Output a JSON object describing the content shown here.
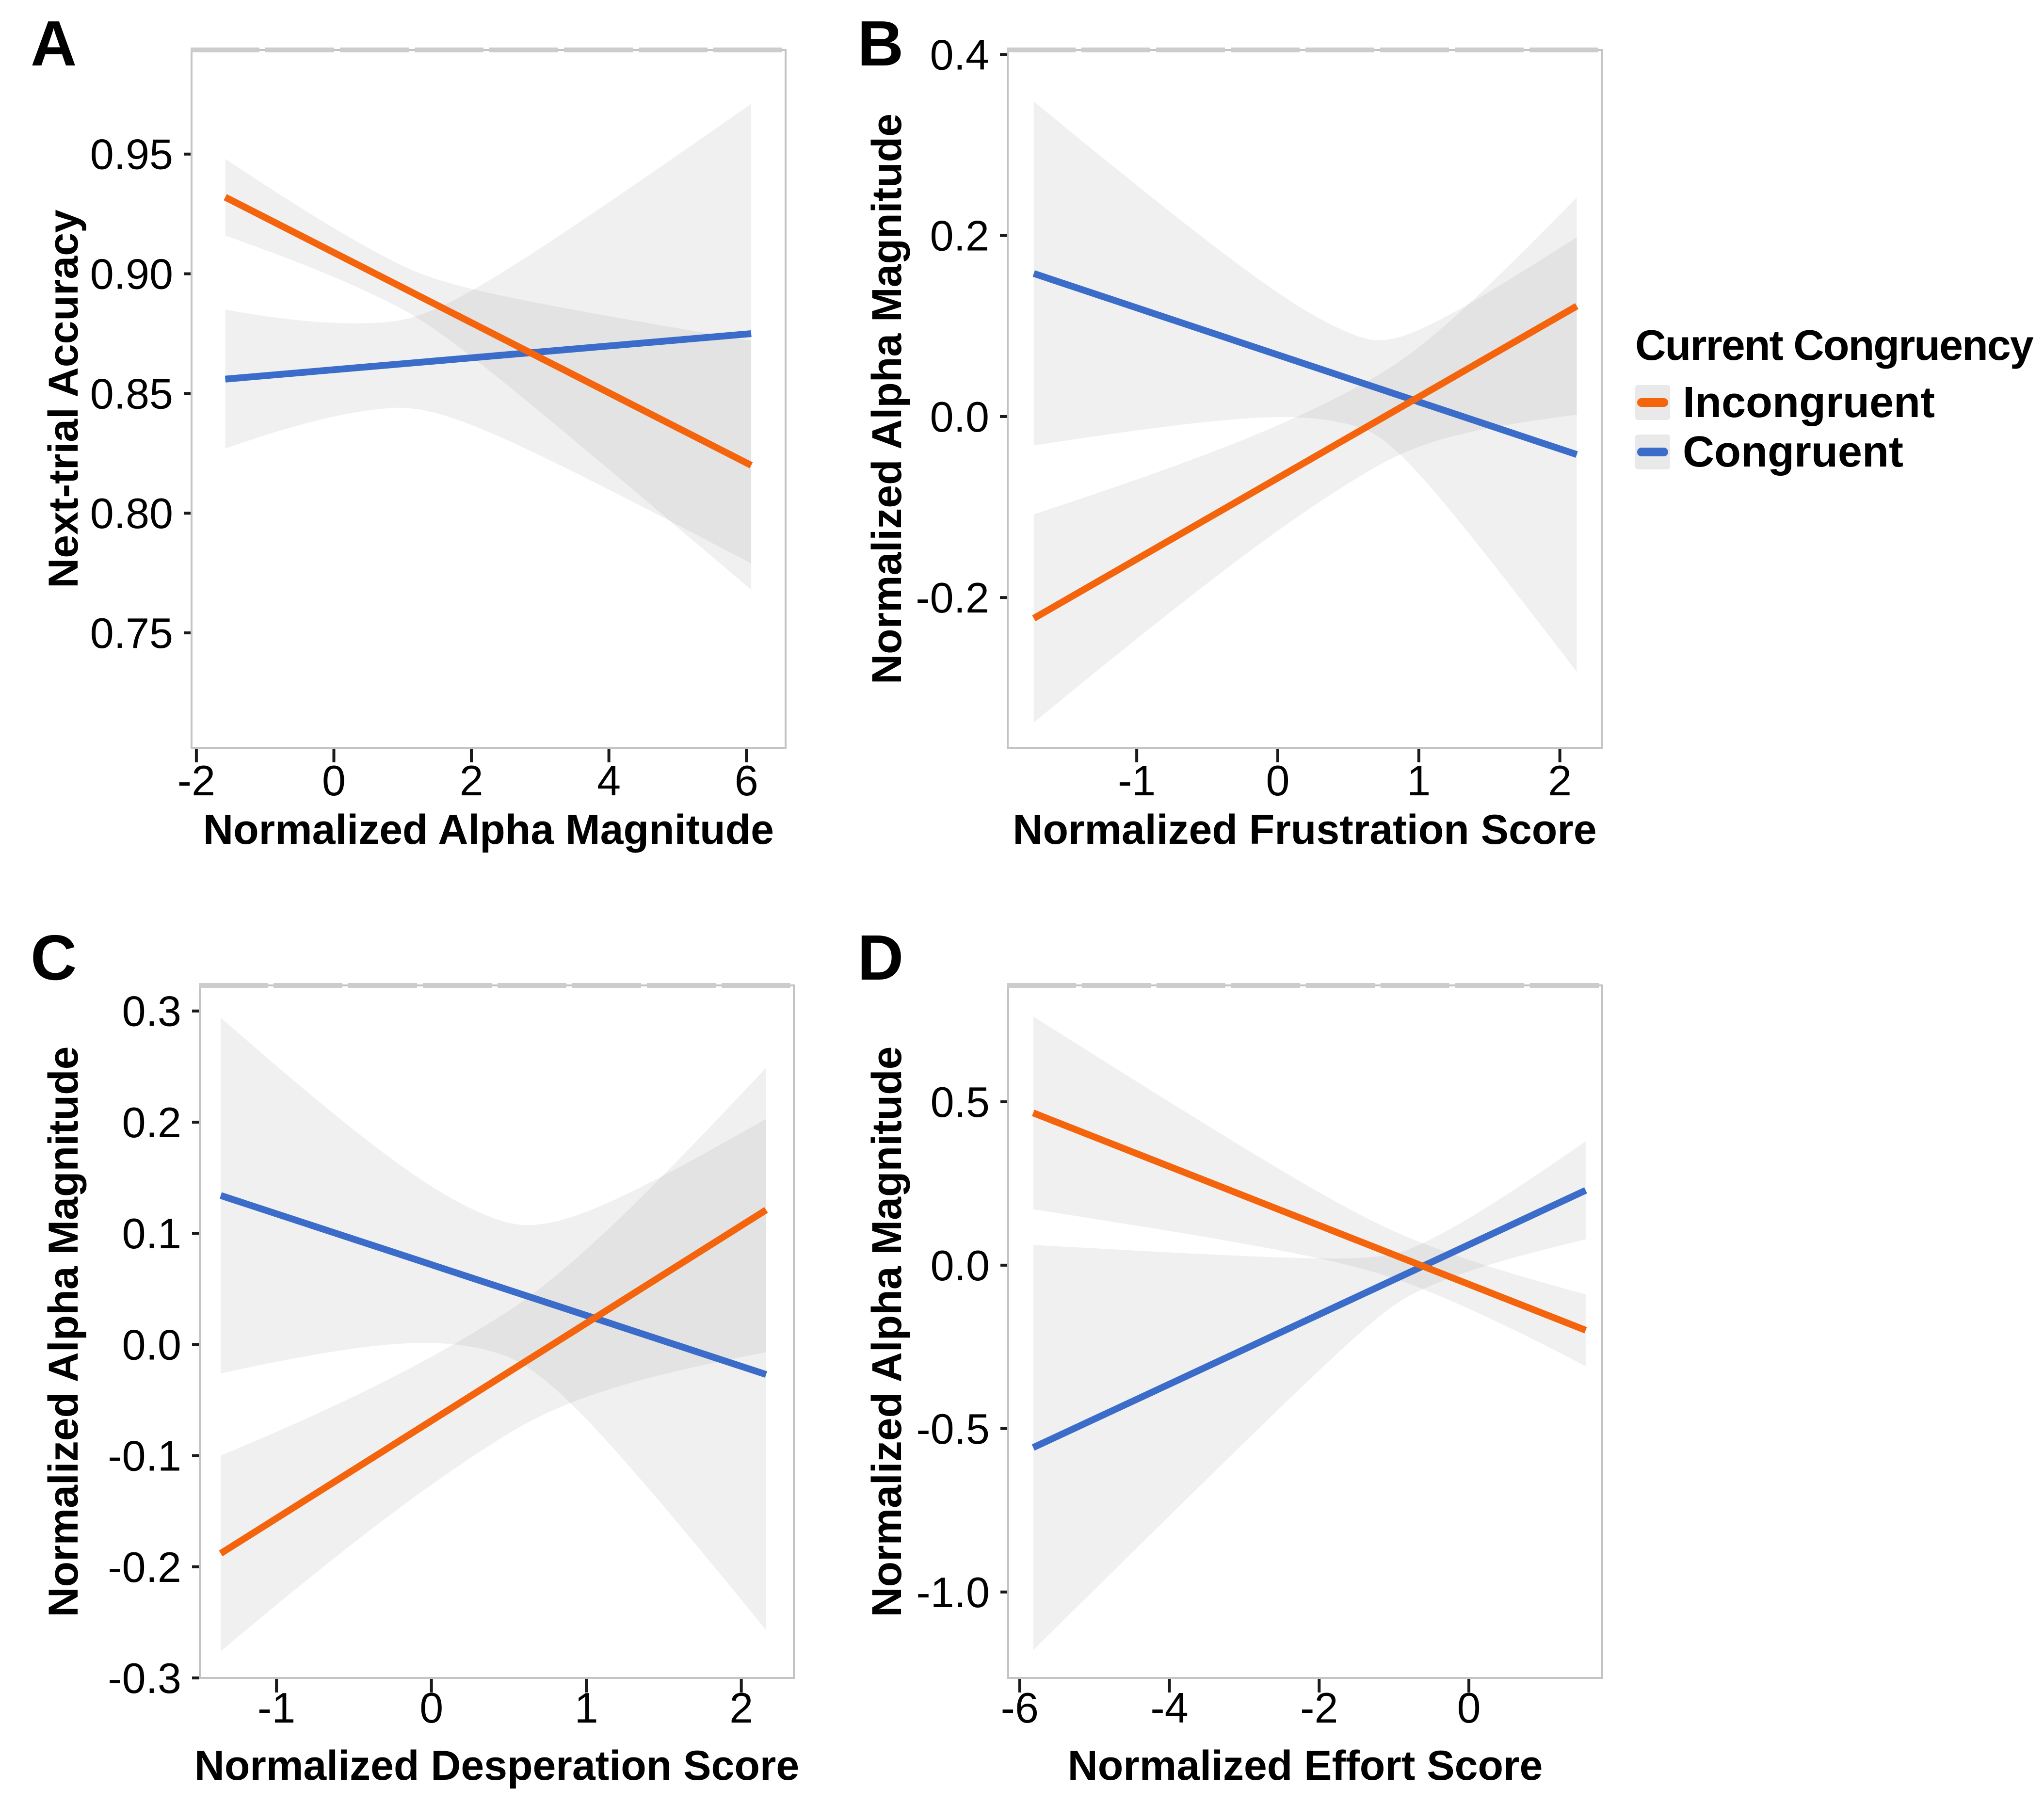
{
  "colors": {
    "incongruent": "#F4640D",
    "congruent": "#3B6CC9",
    "ci_fill": "#8A8A8A",
    "ci_opacity": 0.125,
    "axis_border": "#C4C4C4",
    "top_dash": "#CCCCCC",
    "tick": "#1A1A1A",
    "background": "#FFFFFF",
    "legend_key_bg": "#E9E9E9"
  },
  "legend": {
    "title": "Current Congruency",
    "items": [
      {
        "label": "Incongruent",
        "color_key": "incongruent"
      },
      {
        "label": "Congruent",
        "color_key": "congruent"
      }
    ]
  },
  "chart_data": [
    {
      "id": "A",
      "type": "line",
      "panel_label": "A",
      "xlabel": "Normalized Alpha Magnitude",
      "ylabel": "Next-trial Accuracy",
      "xlim": [
        -2.07,
        6.57
      ],
      "ylim": [
        0.702,
        0.9935
      ],
      "xticks": [
        {
          "value": -2,
          "label": "-2"
        },
        {
          "value": 0,
          "label": "0"
        },
        {
          "value": 2,
          "label": "2"
        },
        {
          "value": 4,
          "label": "4"
        },
        {
          "value": 6,
          "label": "6"
        }
      ],
      "yticks": [
        {
          "value": 0.75,
          "label": "0.75"
        },
        {
          "value": 0.8,
          "label": "0.80"
        },
        {
          "value": 0.85,
          "label": "0.85"
        },
        {
          "value": 0.9,
          "label": "0.90"
        },
        {
          "value": 0.95,
          "label": "0.95"
        }
      ],
      "series": [
        {
          "name": "Congruent",
          "color_key": "congruent",
          "x": [
            -1.58,
            6.07
          ],
          "y": [
            0.856,
            0.875
          ],
          "ci": {
            "x_mid": 0.8,
            "w_left": 0.029,
            "w_mid": 0.018,
            "w_right": 0.096
          }
        },
        {
          "name": "Incongruent",
          "color_key": "incongruent",
          "x": [
            -1.58,
            6.07
          ],
          "y": [
            0.932,
            0.82
          ],
          "ci": {
            "x_mid": 0.9,
            "w_left": 0.016,
            "w_mid": 0.009,
            "w_right": 0.052
          }
        }
      ]
    },
    {
      "id": "B",
      "type": "line",
      "panel_label": "B",
      "xlabel": "Normalized Frustration Score",
      "ylabel": "Normalized Alpha Magnitude",
      "xlim": [
        -1.915,
        2.297
      ],
      "ylim": [
        -0.366,
        0.405
      ],
      "xticks": [
        {
          "value": -1,
          "label": "-1"
        },
        {
          "value": 0,
          "label": "0"
        },
        {
          "value": 1,
          "label": "1"
        },
        {
          "value": 2,
          "label": "2"
        }
      ],
      "yticks": [
        {
          "value": -0.2,
          "label": "-0.2"
        },
        {
          "value": 0.0,
          "label": "0.0"
        },
        {
          "value": 0.2,
          "label": "0.2"
        },
        {
          "value": 0.4,
          "label": "0.4"
        }
      ],
      "series": [
        {
          "name": "Congruent",
          "color_key": "congruent",
          "x": [
            -1.73,
            2.12
          ],
          "y": [
            0.158,
            -0.042
          ],
          "ci": {
            "x_mid": 0.6,
            "w_left": 0.19,
            "w_mid": 0.05,
            "w_right": 0.24
          }
        },
        {
          "name": "Incongruent",
          "color_key": "incongruent",
          "x": [
            -1.73,
            2.12
          ],
          "y": [
            -0.223,
            0.122
          ],
          "ci": {
            "x_mid": 0.7,
            "w_left": 0.115,
            "w_mid": 0.05,
            "w_right": 0.12
          }
        }
      ]
    },
    {
      "id": "C",
      "type": "line",
      "panel_label": "C",
      "xlabel": "Normalized Desperation Score",
      "ylabel": "Normalized Alpha Magnitude",
      "xlim": [
        -1.495,
        2.339
      ],
      "ylim": [
        -0.3,
        0.323
      ],
      "xticks": [
        {
          "value": -1,
          "label": "-1"
        },
        {
          "value": 0,
          "label": "0"
        },
        {
          "value": 1,
          "label": "1"
        },
        {
          "value": 2,
          "label": "2"
        }
      ],
      "yticks": [
        {
          "value": -0.3,
          "label": "-0.3"
        },
        {
          "value": -0.2,
          "label": "-0.2"
        },
        {
          "value": -0.1,
          "label": "-0.1"
        },
        {
          "value": 0.0,
          "label": "0.0"
        },
        {
          "value": 0.1,
          "label": "0.1"
        },
        {
          "value": 0.2,
          "label": "0.2"
        },
        {
          "value": 0.3,
          "label": "0.3"
        }
      ],
      "series": [
        {
          "name": "Congruent",
          "color_key": "congruent",
          "x": [
            -1.36,
            2.16
          ],
          "y": [
            0.134,
            -0.027
          ],
          "ci": {
            "x_mid": 0.45,
            "w_left": 0.16,
            "w_mid": 0.06,
            "w_right": 0.23
          }
        },
        {
          "name": "Incongruent",
          "color_key": "incongruent",
          "x": [
            -1.36,
            2.16
          ],
          "y": [
            -0.188,
            0.121
          ],
          "ci": {
            "x_mid": 0.45,
            "w_left": 0.088,
            "w_mid": 0.055,
            "w_right": 0.128
          }
        }
      ]
    },
    {
      "id": "D",
      "type": "line",
      "panel_label": "D",
      "xlabel": "Normalized Effort Score",
      "ylabel": "Normalized Alpha Magnitude",
      "xlim": [
        -6.154,
        1.781
      ],
      "ylim": [
        -1.263,
        0.856
      ],
      "xticks": [
        {
          "value": -6,
          "label": "-6"
        },
        {
          "value": -4,
          "label": "-4"
        },
        {
          "value": -2,
          "label": "-2"
        },
        {
          "value": 0,
          "label": "0"
        }
      ],
      "yticks": [
        {
          "value": -1.0,
          "label": "-1.0"
        },
        {
          "value": -0.5,
          "label": "-0.5"
        },
        {
          "value": 0.0,
          "label": "0.0"
        },
        {
          "value": 0.5,
          "label": "0.5"
        }
      ],
      "series": [
        {
          "name": "Congruent",
          "color_key": "congruent",
          "x": [
            -5.82,
            1.56
          ],
          "y": [
            -0.558,
            0.229
          ],
          "ci": {
            "x_mid": -0.7,
            "w_left": 0.62,
            "w_mid": 0.07,
            "w_right": 0.15
          }
        },
        {
          "name": "Incongruent",
          "color_key": "incongruent",
          "x": [
            -5.82,
            1.56
          ],
          "y": [
            0.466,
            -0.199
          ],
          "ci": {
            "x_mid": -0.7,
            "w_left": 0.295,
            "w_mid": 0.07,
            "w_right": 0.11
          }
        }
      ]
    }
  ]
}
